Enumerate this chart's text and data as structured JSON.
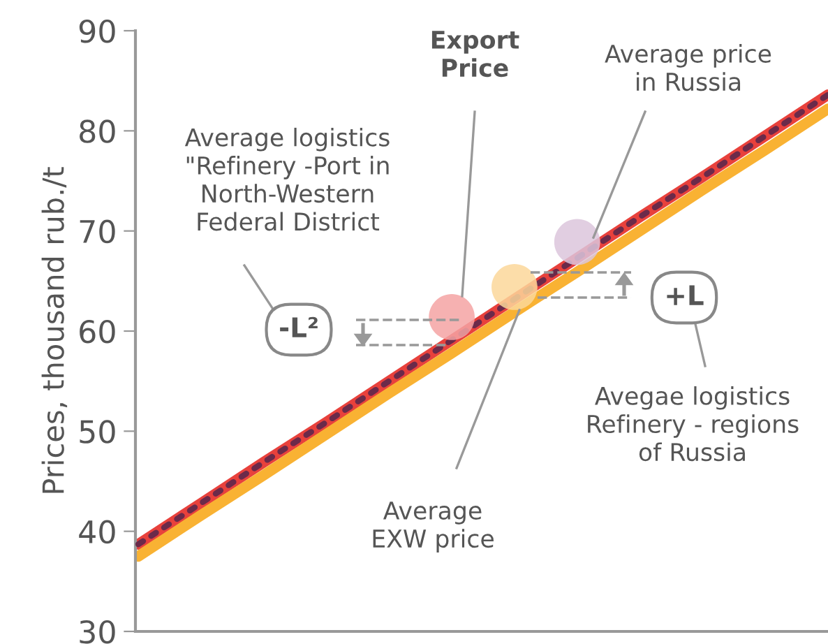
{
  "chart_data": {
    "type": "line",
    "ylabel": "Prices, thousand rub./t",
    "categories": [
      null,
      null,
      null,
      null,
      null,
      null,
      null,
      null,
      null,
      null,
      null,
      null
    ],
    "series": [
      {
        "color": "#e8413c",
        "line_style": "solid",
        "values": [
          38.7,
          42.8,
          46.9,
          50.9,
          55.0,
          59.1,
          63.2,
          67.3,
          71.4,
          75.4,
          79.5,
          83.6
        ]
      },
      {
        "color": "#6b2a4a",
        "line_style": "dotted",
        "values": [
          38.7,
          42.8,
          46.9,
          50.9,
          55.0,
          59.1,
          63.2,
          67.3,
          71.4,
          75.4,
          79.5,
          83.6
        ]
      },
      {
        "color": "#f9b233",
        "line_style": "solid",
        "values": [
          37.5,
          41.6,
          45.6,
          49.7,
          53.8,
          57.8,
          61.9,
          65.9,
          70.0,
          74.1,
          78.1,
          82.2
        ]
      },
      {
        "type": "scatter",
        "color": "#f4a3a3",
        "marker": "circle",
        "values": [
          null,
          null,
          null,
          null,
          null,
          61.4,
          null,
          null,
          null,
          null,
          null,
          null
        ]
      },
      {
        "type": "scatter",
        "color": "#fbd79a",
        "marker": "circle",
        "values": [
          null,
          null,
          null,
          null,
          null,
          null,
          64.4,
          null,
          null,
          null,
          null,
          null
        ]
      },
      {
        "type": "scatter",
        "color": "#dcc6dc",
        "marker": "circle",
        "values": [
          null,
          null,
          null,
          null,
          null,
          null,
          null,
          68.9,
          null,
          null,
          null,
          null
        ]
      }
    ],
    "ylim": [
      30,
      90
    ],
    "yticks": [
      30,
      40,
      50,
      60,
      70,
      80,
      90
    ],
    "grid": false,
    "legend": false,
    "tick_labels": "y",
    "annotations": [
      "Export\nPrice",
      "Average price\nin Russia",
      "Average logistics\n\"Refinery -Port in\nNorth-Western\nFederal District",
      "-L²",
      "+L",
      "Avegae logistics\nRefinery - regions\nof Russia",
      "Average\nEXW price"
    ]
  }
}
